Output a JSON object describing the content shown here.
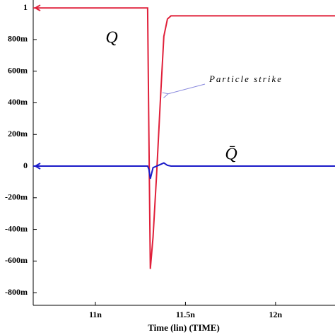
{
  "chart_data": {
    "type": "line",
    "x_label": "Time (lin) (TIME)",
    "x": [
      10.655,
      11.29,
      11.297,
      11.305,
      11.32,
      11.34,
      11.36,
      11.38,
      11.4,
      11.42,
      11.5,
      12.33
    ],
    "series": [
      {
        "name": "Q",
        "color": "#e0203a",
        "values": [
          1,
          1,
          0.2,
          -0.65,
          -0.45,
          -0.05,
          0.4,
          0.82,
          0.93,
          0.95,
          0.95,
          0.95
        ]
      },
      {
        "name": "Q̄",
        "color": "#1a1ac8",
        "values": [
          0,
          0,
          -0.02,
          -0.08,
          -0.01,
          0,
          0.01,
          0.02,
          0.005,
          0,
          0,
          0
        ]
      }
    ],
    "annotations": [
      "Particle strike"
    ],
    "xlim": [
      10.655,
      12.33
    ],
    "xticks": [
      {
        "value": 11,
        "label": "11n"
      },
      {
        "value": 11.5,
        "label": "11.5n"
      },
      {
        "value": 12,
        "label": "12n"
      }
    ],
    "ylim": [
      -0.88,
      1.05
    ],
    "yticks": [
      {
        "value": 1,
        "label": "1"
      },
      {
        "value": 0.8,
        "label": "800m"
      },
      {
        "value": 0.6,
        "label": "600m"
      },
      {
        "value": 0.4,
        "label": "400m"
      },
      {
        "value": 0.2,
        "label": "200m"
      },
      {
        "value": 0,
        "label": "0"
      },
      {
        "value": -0.2,
        "label": "-200m"
      },
      {
        "value": -0.4,
        "label": "-400m"
      },
      {
        "value": -0.6,
        "label": "-600m"
      },
      {
        "value": -0.8,
        "label": "-800m"
      }
    ]
  }
}
